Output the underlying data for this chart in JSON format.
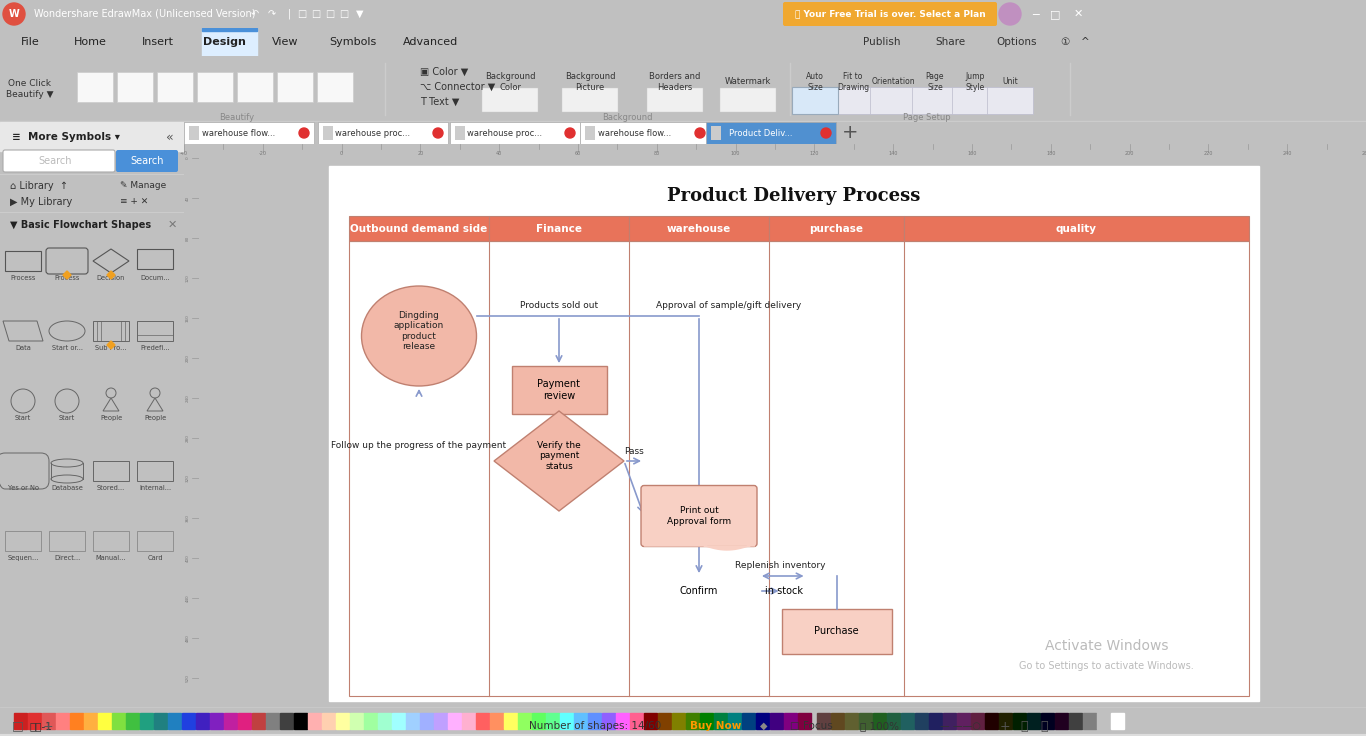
{
  "title": "Product Delivery Process",
  "columns": [
    "Outbound demand side",
    "Finance",
    "warehouse",
    "purchase",
    "quality"
  ],
  "header_color": "#E8735A",
  "header_text_color": "#FFFFFF",
  "border_color": "#C08070",
  "shape_fill": "#F2B8A8",
  "shape_fill_light": "#F8D0C4",
  "arrow_color": "#8899CC",
  "titlebar_bg": "#3C3C3C",
  "menubar_bg": "#F0F0F0",
  "toolbar_bg": "#EEF0F4",
  "tab_bar_bg": "#C8C8C8",
  "sidebar_bg": "#F2F2F2",
  "canvas_bg": "#C0C0C0",
  "page_bg": "#FFFFFF",
  "statusbar_bg": "#F0F0F0",
  "trial_banner_color": "#F0A830",
  "active_tab_color": "#5090D0",
  "ruler_bg": "#E8E8E8"
}
